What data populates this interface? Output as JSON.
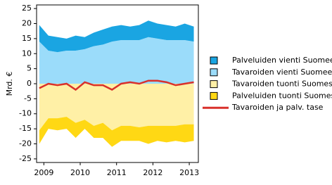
{
  "chart_data": {
    "type": "area",
    "y_label": "Mrd. €",
    "x": [
      2008.875,
      2009.125,
      2009.375,
      2009.625,
      2009.875,
      2010.125,
      2010.375,
      2010.625,
      2010.875,
      2011.125,
      2011.375,
      2011.625,
      2011.875,
      2012.125,
      2012.375,
      2012.625,
      2012.875,
      2013.125
    ],
    "xlim": [
      2008.8,
      2013.25
    ],
    "xticks": [
      2009,
      2010,
      2011,
      2012,
      2013
    ],
    "ylim": [
      -26.2,
      26.2
    ],
    "yticks": [
      -25,
      -20,
      -15,
      -10,
      -5,
      0,
      5,
      10,
      15,
      20,
      25
    ],
    "series": [
      {
        "name": "Palveluiden vienti Suomeen",
        "type": "area",
        "color": "#1aa5e2",
        "values": [
          5.5,
          5,
          5,
          4,
          5,
          4,
          4.5,
          5,
          5,
          5,
          4.5,
          5,
          5.5,
          5,
          5,
          4.5,
          5.5,
          5
        ]
      },
      {
        "name": "Tavaroiden vienti Suomeen",
        "type": "area",
        "color": "#9bdcfa",
        "values": [
          14,
          11,
          10.5,
          11,
          11,
          11.5,
          12.5,
          13,
          14,
          14.5,
          14.5,
          14.5,
          15.5,
          15,
          14.5,
          14.5,
          14.5,
          14
        ]
      },
      {
        "name": "Tavaroiden tuonti Suomesta",
        "type": "area",
        "color": "#fff0a6",
        "values": [
          -15.5,
          -11.5,
          -11.5,
          -11,
          -13,
          -12,
          -14,
          -13,
          -15.5,
          -14,
          -14,
          -14.5,
          -14,
          -14,
          -14,
          -14,
          -13.5,
          -13.5
        ]
      },
      {
        "name": "Palveluiden tuonti Suomesta",
        "type": "area",
        "color": "#ffd814",
        "values": [
          -4.5,
          -3.5,
          -4,
          -4,
          -5,
          -3,
          -4,
          -5,
          -5.5,
          -5,
          -5,
          -4.5,
          -6,
          -5,
          -5.5,
          -5,
          -6,
          -5.5
        ]
      },
      {
        "name": "Tavaroiden ja palv. tase",
        "type": "line",
        "color": "#d9312b",
        "values": [
          -1.5,
          0,
          -0.5,
          0,
          -2,
          0.5,
          -0.5,
          -0.5,
          -2,
          0,
          0.5,
          0,
          1,
          1,
          0.5,
          -0.5,
          0,
          0.5
        ]
      }
    ]
  }
}
